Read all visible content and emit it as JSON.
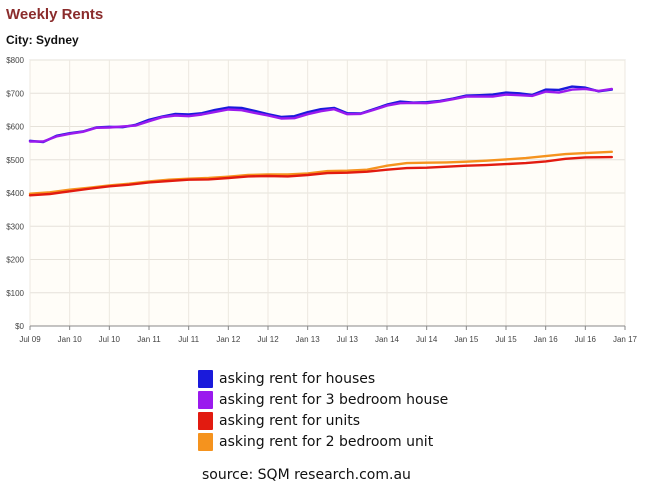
{
  "chart_data": {
    "type": "line",
    "title": "Weekly Rents",
    "subtitle": "City: Sydney",
    "ylim": [
      0,
      800
    ],
    "xlim": [
      "2009-07",
      "2017-01"
    ],
    "yticks": [
      0,
      100,
      200,
      300,
      400,
      500,
      600,
      700,
      800
    ],
    "ytick_labels": [
      "$0",
      "$100",
      "$200",
      "$300",
      "$400",
      "$500",
      "$600",
      "$700",
      "$800"
    ],
    "xticks": [
      "2009-07",
      "2010-01",
      "2010-07",
      "2011-01",
      "2011-07",
      "2012-01",
      "2012-07",
      "2013-01",
      "2013-07",
      "2014-01",
      "2014-07",
      "2015-01",
      "2015-07",
      "2016-01",
      "2016-07",
      "2017-01"
    ],
    "xtick_labels": [
      "Jul 09",
      "Jan 10",
      "Jul 10",
      "Jan 11",
      "Jul 11",
      "Jan 12",
      "Jul 12",
      "Jan 13",
      "Jul 13",
      "Jan 14",
      "Jul 14",
      "Jan 15",
      "Jul 15",
      "Jan 16",
      "Jul 16",
      "Jan 17"
    ],
    "grid": true,
    "legend_position": "bottom",
    "series": [
      {
        "name": "asking rent for houses",
        "color": "#1a1adb",
        "points": [
          [
            "2009-07",
            557
          ],
          [
            "2009-09",
            553
          ],
          [
            "2009-11",
            572
          ],
          [
            "2010-01",
            580
          ],
          [
            "2010-03",
            585
          ],
          [
            "2010-05",
            597
          ],
          [
            "2010-07",
            599
          ],
          [
            "2010-09",
            598
          ],
          [
            "2010-11",
            605
          ],
          [
            "2011-01",
            620
          ],
          [
            "2011-03",
            630
          ],
          [
            "2011-05",
            638
          ],
          [
            "2011-07",
            636
          ],
          [
            "2011-09",
            640
          ],
          [
            "2011-11",
            650
          ],
          [
            "2012-01",
            657
          ],
          [
            "2012-03",
            656
          ],
          [
            "2012-05",
            647
          ],
          [
            "2012-07",
            637
          ],
          [
            "2012-09",
            629
          ],
          [
            "2012-11",
            631
          ],
          [
            "2013-01",
            643
          ],
          [
            "2013-03",
            652
          ],
          [
            "2013-05",
            656
          ],
          [
            "2013-07",
            640
          ],
          [
            "2013-09",
            639
          ],
          [
            "2013-11",
            652
          ],
          [
            "2014-01",
            666
          ],
          [
            "2014-03",
            675
          ],
          [
            "2014-05",
            672
          ],
          [
            "2014-07",
            673
          ],
          [
            "2014-09",
            677
          ],
          [
            "2014-11",
            684
          ],
          [
            "2015-01",
            693
          ],
          [
            "2015-03",
            694
          ],
          [
            "2015-05",
            696
          ],
          [
            "2015-07",
            702
          ],
          [
            "2015-09",
            700
          ],
          [
            "2015-11",
            695
          ],
          [
            "2016-01",
            711
          ],
          [
            "2016-03",
            710
          ],
          [
            "2016-05",
            720
          ],
          [
            "2016-07",
            717
          ],
          [
            "2016-09",
            706
          ],
          [
            "2016-11",
            711
          ]
        ]
      },
      {
        "name": "asking rent for 3 bedroom house",
        "color": "#9a1aee",
        "points": [
          [
            "2009-07",
            555
          ],
          [
            "2009-09",
            555
          ],
          [
            "2009-11",
            570
          ],
          [
            "2010-01",
            578
          ],
          [
            "2010-03",
            584
          ],
          [
            "2010-05",
            596
          ],
          [
            "2010-07",
            597
          ],
          [
            "2010-09",
            600
          ],
          [
            "2010-11",
            603
          ],
          [
            "2011-01",
            616
          ],
          [
            "2011-03",
            628
          ],
          [
            "2011-05",
            633
          ],
          [
            "2011-07",
            631
          ],
          [
            "2011-09",
            636
          ],
          [
            "2011-11",
            644
          ],
          [
            "2012-01",
            651
          ],
          [
            "2012-03",
            649
          ],
          [
            "2012-05",
            641
          ],
          [
            "2012-07",
            633
          ],
          [
            "2012-09",
            624
          ],
          [
            "2012-11",
            625
          ],
          [
            "2013-01",
            637
          ],
          [
            "2013-03",
            646
          ],
          [
            "2013-05",
            652
          ],
          [
            "2013-07",
            637
          ],
          [
            "2013-09",
            638
          ],
          [
            "2013-11",
            650
          ],
          [
            "2014-01",
            663
          ],
          [
            "2014-03",
            670
          ],
          [
            "2014-05",
            671
          ],
          [
            "2014-07",
            670
          ],
          [
            "2014-09",
            675
          ],
          [
            "2014-11",
            682
          ],
          [
            "2015-01",
            690
          ],
          [
            "2015-03",
            690
          ],
          [
            "2015-05",
            690
          ],
          [
            "2015-07",
            696
          ],
          [
            "2015-09",
            694
          ],
          [
            "2015-11",
            692
          ],
          [
            "2016-01",
            705
          ],
          [
            "2016-03",
            702
          ],
          [
            "2016-05",
            711
          ],
          [
            "2016-07",
            713
          ],
          [
            "2016-09",
            707
          ],
          [
            "2016-11",
            713
          ]
        ]
      },
      {
        "name": "asking rent for units",
        "color": "#e21b10",
        "points": [
          [
            "2009-07",
            393
          ],
          [
            "2009-10",
            397
          ],
          [
            "2010-01",
            405
          ],
          [
            "2010-04",
            413
          ],
          [
            "2010-07",
            420
          ],
          [
            "2010-10",
            425
          ],
          [
            "2011-01",
            432
          ],
          [
            "2011-04",
            436
          ],
          [
            "2011-07",
            440
          ],
          [
            "2011-10",
            441
          ],
          [
            "2012-01",
            445
          ],
          [
            "2012-04",
            450
          ],
          [
            "2012-07",
            451
          ],
          [
            "2012-10",
            450
          ],
          [
            "2013-01",
            454
          ],
          [
            "2013-04",
            460
          ],
          [
            "2013-07",
            461
          ],
          [
            "2013-10",
            464
          ],
          [
            "2014-01",
            470
          ],
          [
            "2014-04",
            475
          ],
          [
            "2014-07",
            476
          ],
          [
            "2014-10",
            479
          ],
          [
            "2015-01",
            482
          ],
          [
            "2015-04",
            484
          ],
          [
            "2015-07",
            487
          ],
          [
            "2015-10",
            490
          ],
          [
            "2016-01",
            495
          ],
          [
            "2016-04",
            503
          ],
          [
            "2016-07",
            507
          ],
          [
            "2016-11",
            508
          ]
        ]
      },
      {
        "name": "asking rent for 2 bedroom unit",
        "color": "#f5931e",
        "points": [
          [
            "2009-07",
            398
          ],
          [
            "2009-10",
            402
          ],
          [
            "2010-01",
            410
          ],
          [
            "2010-04",
            416
          ],
          [
            "2010-07",
            423
          ],
          [
            "2010-10",
            428
          ],
          [
            "2011-01",
            435
          ],
          [
            "2011-04",
            440
          ],
          [
            "2011-07",
            443
          ],
          [
            "2011-10",
            445
          ],
          [
            "2012-01",
            449
          ],
          [
            "2012-04",
            454
          ],
          [
            "2012-07",
            456
          ],
          [
            "2012-10",
            456
          ],
          [
            "2013-01",
            459
          ],
          [
            "2013-04",
            466
          ],
          [
            "2013-07",
            467
          ],
          [
            "2013-10",
            470
          ],
          [
            "2014-01",
            482
          ],
          [
            "2014-04",
            490
          ],
          [
            "2014-07",
            491
          ],
          [
            "2014-10",
            492
          ],
          [
            "2015-01",
            494
          ],
          [
            "2015-04",
            497
          ],
          [
            "2015-07",
            501
          ],
          [
            "2015-10",
            505
          ],
          [
            "2016-01",
            511
          ],
          [
            "2016-04",
            517
          ],
          [
            "2016-07",
            520
          ],
          [
            "2016-11",
            524
          ]
        ]
      }
    ]
  },
  "source": "source: SQM research.com.au"
}
